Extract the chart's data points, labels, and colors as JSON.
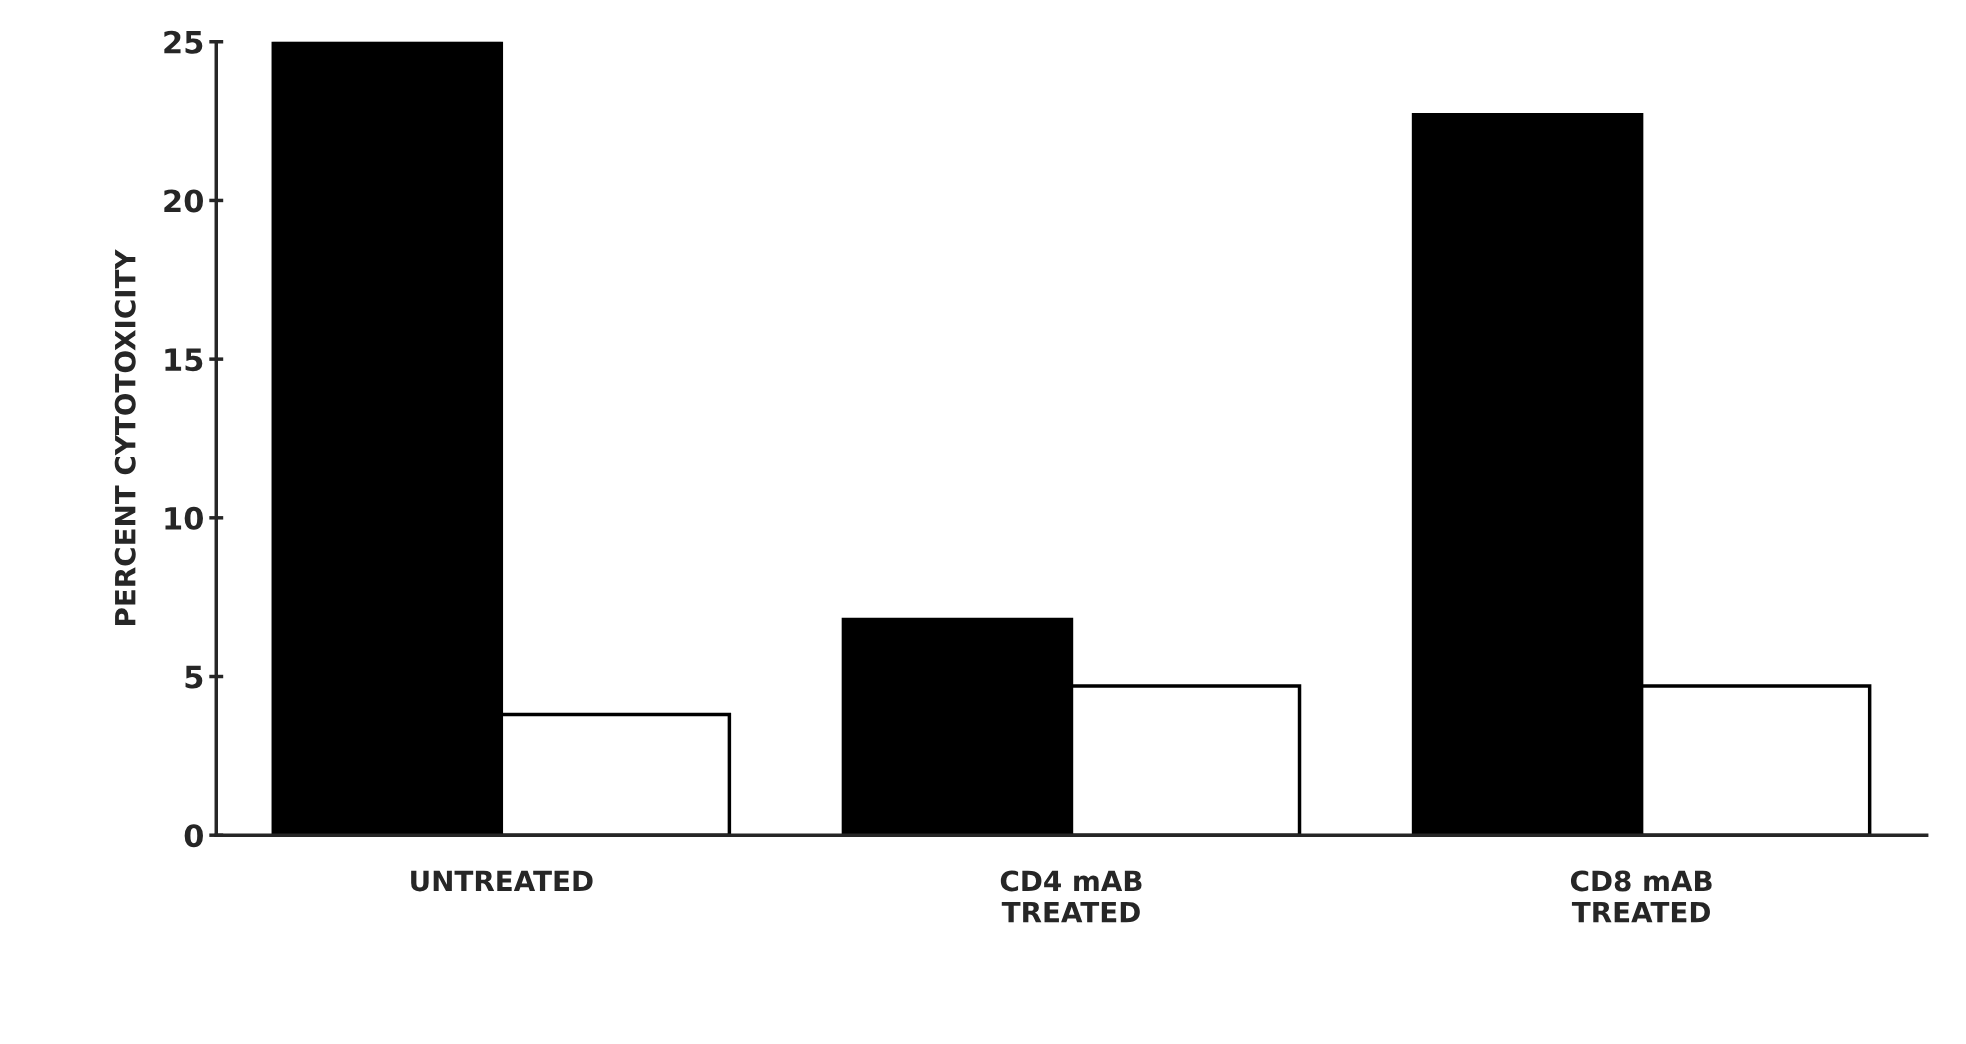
{
  "chart_data": {
    "type": "bar",
    "ylabel": "PERCENT CYTOTOXICITY",
    "categories": [
      "UNTREATED",
      "CD4 mAB\nTREATED",
      "CD8 mAB\nTREATED"
    ],
    "series": [
      {
        "color": "#000000",
        "values": [
          25,
          6.8,
          22.7
        ]
      },
      {
        "color": "#ffffff",
        "values": [
          3.8,
          4.7,
          4.7
        ]
      }
    ],
    "ylim": [
      0,
      25
    ],
    "yticks": [
      0,
      5,
      10,
      15,
      20,
      25
    ],
    "grid": false,
    "legend": false
  }
}
